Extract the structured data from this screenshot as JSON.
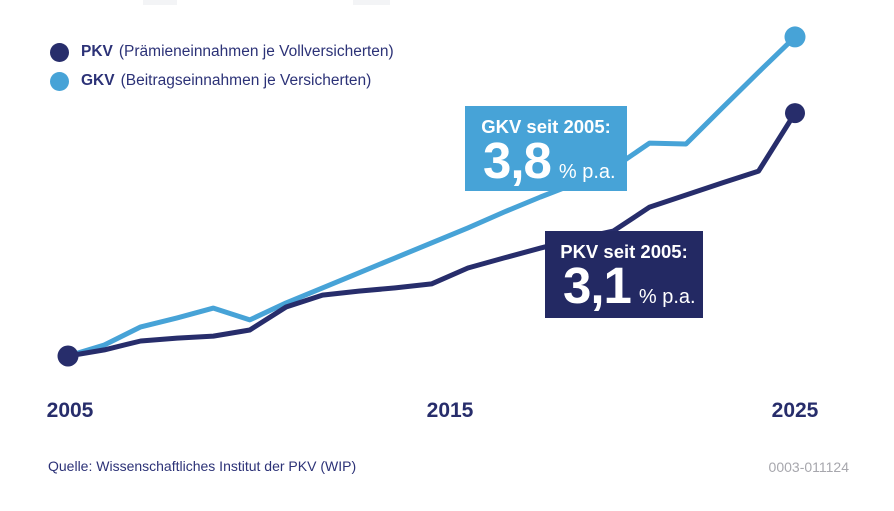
{
  "legend": {
    "items": [
      {
        "abbr": "PKV",
        "desc": "(Prämieneinnahmen je Vollversicherten)",
        "color": "#272d6b"
      },
      {
        "abbr": "GKV",
        "desc": "(Beitragseinnahmen je Versicherten)",
        "color": "#47a3d7"
      }
    ]
  },
  "callouts": {
    "gkv": {
      "title": "GKV seit 2005:",
      "value": "3,8",
      "unit": "% p.a.",
      "bg": "#47a3d7"
    },
    "pkv": {
      "title": "PKV seit 2005:",
      "value": "3,1",
      "unit": "% p.a.",
      "bg": "#232963"
    }
  },
  "axis": {
    "ticks": [
      "2005",
      "2015",
      "2025"
    ]
  },
  "footer": {
    "source": "Quelle: Wissenschaftliches Institut der PKV (WIP)",
    "code": "0003-011124"
  },
  "chart_data": {
    "type": "line",
    "title": "",
    "xlabel": "",
    "ylabel": "",
    "y_axis_note": "no visible y-axis; values are an index estimated from the plot, 2005 = 100",
    "x": [
      2005,
      2006,
      2007,
      2008,
      2009,
      2010,
      2011,
      2012,
      2013,
      2014,
      2015,
      2016,
      2017,
      2018,
      2019,
      2020,
      2021,
      2022,
      2023,
      2024,
      2025
    ],
    "x_ticks_shown": [
      2005,
      2015,
      2025
    ],
    "legend_position": "top-left",
    "grid": false,
    "series": [
      {
        "name": "PKV (Prämieneinnahmen je Vollversicherten)",
        "color": "#272d6b",
        "growth_since_2005": "3,1 % p.a.",
        "values": [
          100,
          102.1,
          105.2,
          106.2,
          106.9,
          109.0,
          117.0,
          121.1,
          122.5,
          123.6,
          125.0,
          130.5,
          134.0,
          137.4,
          140.6,
          143.3,
          151.6,
          155.8,
          160.0,
          164.1,
          184.2
        ]
      },
      {
        "name": "GKV (Beitragseinnahmen je Versicherten)",
        "color": "#47a3d7",
        "growth_since_2005": "3,8 % p.a.",
        "values": [
          100,
          103.8,
          110.1,
          113.2,
          116.6,
          112.5,
          118.4,
          123.6,
          128.8,
          134.0,
          139.2,
          144.4,
          149.9,
          155.1,
          160.0,
          165.2,
          173.8,
          173.5,
          186.0,
          198.4,
          210.6
        ]
      }
    ],
    "annotations": [
      {
        "text": "GKV seit 2005: 3,8 % p.a.",
        "style": "light-blue box"
      },
      {
        "text": "PKV seit 2005: 3,1 % p.a.",
        "style": "dark-navy box"
      }
    ]
  }
}
